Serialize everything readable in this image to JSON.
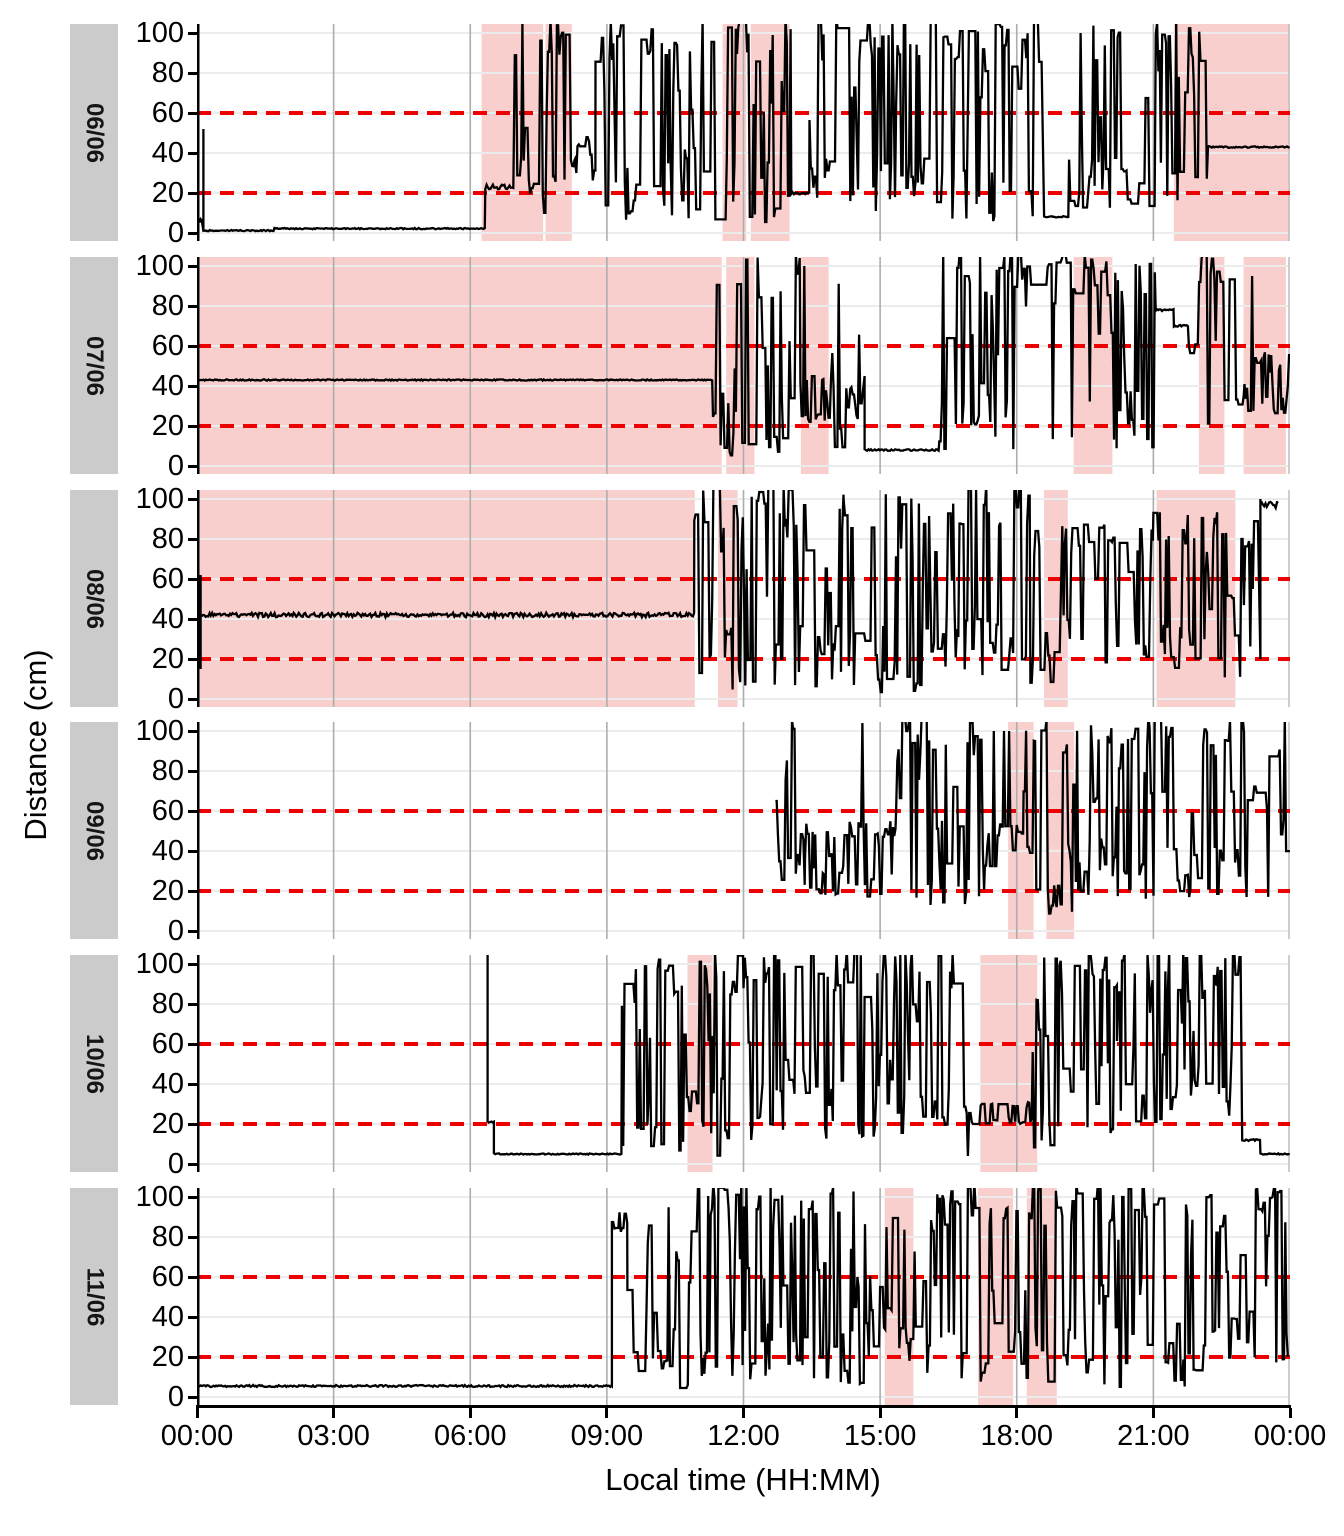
{
  "figure": {
    "y_axis_title": "Distance (cm)",
    "x_axis_title": "Local time (HH:MM)",
    "x_ticks": [
      "00:00",
      "03:00",
      "06:00",
      "09:00",
      "12:00",
      "15:00",
      "18:00",
      "21:00",
      "00:00"
    ],
    "x_tick_hours": [
      0,
      3,
      6,
      9,
      12,
      15,
      18,
      21,
      24
    ],
    "y_ticks": [
      "0",
      "20",
      "40",
      "60",
      "80",
      "100"
    ],
    "y_tick_values": [
      0,
      20,
      40,
      60,
      80,
      100
    ],
    "colors": {
      "line": "#000000",
      "reference": "#ee0000",
      "shade": "rgba(232,78,72,0.27)",
      "strip_bg": "#cbcbcb",
      "grid_h": "#ececec",
      "grid_v": "#adadad",
      "grid_edge": "#c2c2c2",
      "axis": "#000000"
    }
  },
  "chart_data": {
    "type": "line",
    "title": "",
    "xlabel": "Local time (HH:MM)",
    "ylabel": "Distance (cm)",
    "x_range_hours": [
      0,
      24
    ],
    "ylim": [
      0,
      100
    ],
    "grid": "major",
    "legend": "none",
    "reference_lines_y": [
      20,
      60
    ],
    "reference_style": "red-dashed",
    "shade_meaning": "highlighted time intervals",
    "panels": [
      {
        "label": "06/06",
        "shaded_regions": [
          [
            6.25,
            7.6
          ],
          [
            7.65,
            8.23
          ],
          [
            11.54,
            12.06
          ],
          [
            12.16,
            13.01
          ],
          [
            21.45,
            24
          ]
        ],
        "segments": [
          {
            "type": "flat",
            "t": [
              0.05,
              0.12
            ],
            "v": 6,
            "fuzz": 1
          },
          {
            "type": "vline",
            "t": 0.14,
            "v0": 1,
            "v1": 52
          },
          {
            "type": "flat",
            "t": [
              0.14,
              1.7
            ],
            "v": 1.2,
            "fuzz": 0.3
          },
          {
            "type": "flat",
            "t": [
              1.7,
              6.33
            ],
            "v": 2.2,
            "fuzz": 0.3
          },
          {
            "type": "flat",
            "t": [
              6.33,
              6.95
            ],
            "v": 23,
            "fuzz": 1.2
          },
          {
            "type": "noise",
            "t": [
              6.95,
              8.3
            ],
            "lo": 8,
            "hi": 108
          },
          {
            "type": "noise",
            "t": [
              8.3,
              8.75
            ],
            "lo": 26,
            "hi": 48
          },
          {
            "type": "noise",
            "t": [
              8.75,
              13.05
            ],
            "lo": 5,
            "hi": 108
          },
          {
            "type": "flat",
            "t": [
              13.05,
              13.45
            ],
            "v": 20,
            "fuzz": 0.6
          },
          {
            "type": "noise",
            "t": [
              13.45,
              18.55
            ],
            "lo": 5,
            "hi": 108
          },
          {
            "type": "flat",
            "t": [
              18.6,
              19.15
            ],
            "v": 8,
            "fuzz": 0.5
          },
          {
            "type": "noise",
            "t": [
              19.15,
              22.2
            ],
            "lo": 8,
            "hi": 108
          },
          {
            "type": "flat",
            "t": [
              22.2,
              24
            ],
            "v": 43,
            "fuzz": 0.4
          }
        ]
      },
      {
        "label": "07/06",
        "shaded_regions": [
          [
            0,
            11.52
          ],
          [
            11.62,
            12.24
          ],
          [
            13.26,
            13.87
          ],
          [
            19.25,
            20.1
          ],
          [
            22.0,
            22.56
          ],
          [
            22.98,
            23.91
          ]
        ],
        "segments": [
          {
            "type": "flat",
            "t": [
              0,
              11.33
            ],
            "v": 43,
            "fuzz": 0.3
          },
          {
            "type": "noise",
            "t": [
              11.33,
              13.25
            ],
            "lo": 5,
            "hi": 108
          },
          {
            "type": "noise",
            "t": [
              13.25,
              13.95
            ],
            "lo": 22,
            "hi": 46,
            "spike_p": 0.02,
            "spike_v": 100
          },
          {
            "type": "noise",
            "t": [
              13.95,
              14.6
            ],
            "lo": 5,
            "hi": 108
          },
          {
            "type": "vline",
            "t": 14.66,
            "v0": 45,
            "v1": 8
          },
          {
            "type": "flat",
            "t": [
              14.66,
              16.3
            ],
            "v": 8,
            "fuzz": 0.4
          },
          {
            "type": "noise",
            "t": [
              16.3,
              21.05
            ],
            "lo": 5,
            "hi": 108
          },
          {
            "type": "flat",
            "t": [
              21.05,
              21.45
            ],
            "v": 78,
            "fuzz": 0.5
          },
          {
            "type": "flat",
            "t": [
              21.45,
              21.78
            ],
            "v": 70,
            "fuzz": 0.5
          },
          {
            "type": "noise",
            "t": [
              21.78,
              23.0
            ],
            "lo": 12,
            "hi": 108
          },
          {
            "type": "noise",
            "t": [
              23.0,
              24
            ],
            "lo": 24,
            "hi": 58,
            "spike_p": 0.02,
            "spike_v": 95
          }
        ]
      },
      {
        "label": "08/06",
        "shaded_regions": [
          [
            0,
            10.93
          ],
          [
            11.44,
            11.87
          ],
          [
            18.6,
            19.12
          ],
          [
            21.07,
            22.8
          ]
        ],
        "segments": [
          {
            "type": "vline",
            "t": 0.08,
            "v0": 15,
            "v1": 62
          },
          {
            "type": "flat",
            "t": [
              0.08,
              10.92
            ],
            "v": 42,
            "fuzz": 1.1
          },
          {
            "type": "noise",
            "t": [
              10.92,
              14.2
            ],
            "lo": 3,
            "hi": 108
          },
          {
            "type": "noise",
            "t": [
              14.2,
              16.1
            ],
            "lo": 3,
            "hi": 108
          },
          {
            "type": "noise",
            "t": [
              16.1,
              18.3
            ],
            "lo": 10,
            "hi": 108
          },
          {
            "type": "noise",
            "t": [
              18.3,
              21.0
            ],
            "lo": 8,
            "hi": 88
          },
          {
            "type": "noise",
            "t": [
              21.0,
              23.3
            ],
            "lo": 10,
            "hi": 96
          },
          {
            "type": "vline",
            "t": 23.35,
            "v0": 20,
            "v1": 100
          },
          {
            "type": "flat",
            "t": [
              23.35,
              23.75
            ],
            "v": 97,
            "fuzz": 1.5
          }
        ]
      },
      {
        "label": "09/06",
        "shaded_regions": [
          [
            17.81,
            18.37
          ],
          [
            18.65,
            19.26
          ]
        ],
        "segments": [
          {
            "type": "noise",
            "t": [
              12.7,
              13.35
            ],
            "lo": 22,
            "hi": 108
          },
          {
            "type": "noise",
            "t": [
              13.35,
              15.35
            ],
            "lo": 17,
            "hi": 55,
            "spike_p": 0.018,
            "spike_v": 104
          },
          {
            "type": "noise",
            "t": [
              15.35,
              17.3
            ],
            "lo": 12,
            "hi": 108
          },
          {
            "type": "noise",
            "t": [
              17.3,
              18.15
            ],
            "lo": 26,
            "hi": 54,
            "spike_p": 0.012,
            "spike_v": 100
          },
          {
            "type": "noise",
            "t": [
              18.15,
              19.35
            ],
            "lo": 4,
            "hi": 108
          },
          {
            "type": "noise",
            "t": [
              19.35,
              24
            ],
            "lo": 15,
            "hi": 108
          }
        ]
      },
      {
        "label": "10/06",
        "shaded_regions": [
          [
            10.77,
            11.32
          ],
          [
            17.2,
            18.45
          ]
        ],
        "segments": [
          {
            "type": "vline",
            "t": 6.38,
            "v0": 108,
            "v1": 21
          },
          {
            "type": "flat",
            "t": [
              6.38,
              6.52
            ],
            "v": 21,
            "fuzz": 0.4
          },
          {
            "type": "vline",
            "t": 6.52,
            "v0": 21,
            "v1": 5
          },
          {
            "type": "flat",
            "t": [
              6.52,
              9.33
            ],
            "v": 5,
            "fuzz": 0.3
          },
          {
            "type": "noise",
            "t": [
              9.33,
              12.0
            ],
            "lo": 4,
            "hi": 108
          },
          {
            "type": "noise",
            "t": [
              12.0,
              16.9
            ],
            "lo": 12,
            "hi": 108
          },
          {
            "type": "noise",
            "t": [
              16.9,
              18.35
            ],
            "lo": 20,
            "hi": 31,
            "spike_p": 0.02,
            "spike_v": 62,
            "dip_p": 0.025,
            "dip_v": 4
          },
          {
            "type": "noise",
            "t": [
              18.35,
              20.2
            ],
            "lo": 4,
            "hi": 108
          },
          {
            "type": "noise",
            "t": [
              20.2,
              22.95
            ],
            "lo": 15,
            "hi": 108
          },
          {
            "type": "flat",
            "t": [
              22.95,
              23.35
            ],
            "v": 12,
            "fuzz": 0.5
          },
          {
            "type": "flat",
            "t": [
              23.35,
              24
            ],
            "v": 5,
            "fuzz": 0.4
          }
        ]
      },
      {
        "label": "11/06",
        "shaded_regions": [
          [
            15.1,
            15.73
          ],
          [
            17.15,
            17.92
          ],
          [
            18.22,
            18.88
          ]
        ],
        "segments": [
          {
            "type": "flat",
            "t": [
              0,
              9.11
            ],
            "v": 5.5,
            "fuzz": 0.5
          },
          {
            "type": "vline",
            "t": 9.11,
            "v0": 5.5,
            "v1": 88
          },
          {
            "type": "noise",
            "t": [
              9.11,
              9.45
            ],
            "lo": 82,
            "hi": 93
          },
          {
            "type": "noise",
            "t": [
              9.45,
              10.3
            ],
            "lo": 12,
            "hi": 95
          },
          {
            "type": "noise",
            "t": [
              10.3,
              15.0
            ],
            "lo": 4,
            "hi": 108
          },
          {
            "type": "noise",
            "t": [
              15.0,
              16.2
            ],
            "lo": 10,
            "hi": 100
          },
          {
            "type": "noise",
            "t": [
              16.2,
              22.3
            ],
            "lo": 4,
            "hi": 108
          },
          {
            "type": "noise",
            "t": [
              22.3,
              24
            ],
            "lo": 15,
            "hi": 105
          }
        ]
      }
    ]
  }
}
